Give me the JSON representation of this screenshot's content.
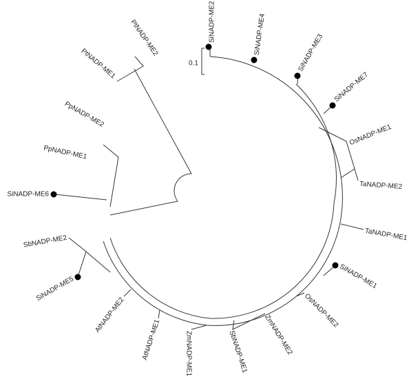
{
  "scale_label": "0.1",
  "labels": [
    "SiNADP-ME2",
    "SiNADP-ME4",
    "SiNADP-ME3",
    "SiNADP-ME7",
    "OsNADP-ME1",
    "TaNADP-ME2",
    "TaNADP-ME1",
    "SiNADP-ME1",
    "OsNADP-ME2",
    "ZmNADP-ME2",
    "SbNADP-ME1",
    "ZmNADP-ME1",
    "AtNADP-ME1",
    "AtNADP-ME2",
    "SiNADP-ME5",
    "SbNADP-ME2",
    "SiNADP-ME6",
    "PpNADP-ME1",
    "PpNADP-ME2",
    "PtNADP-ME1",
    "PtNADP-ME2"
  ]
}
